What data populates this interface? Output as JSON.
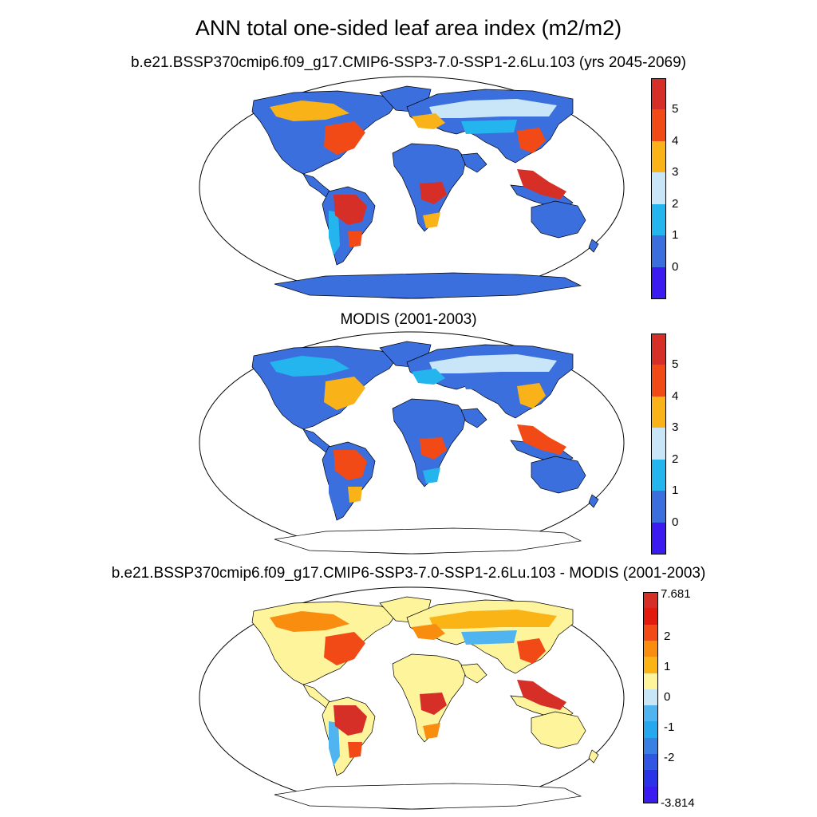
{
  "title": "ANN total one-sided leaf area index (m2/m2)",
  "panels": [
    {
      "subtitle": "b.e21.BSSP370cmip6.f09_g17.CMIP6-SSP3-7.0-SSP1-2.6Lu.103 (yrs 2045-2069)",
      "colorbar": {
        "colors": [
          "#d62f27",
          "#f24a16",
          "#f9b218",
          "#c8e6f8",
          "#25b5ee",
          "#3c6fde",
          "#3b1cf0"
        ],
        "labels": [
          "5",
          "4",
          "3",
          "2",
          "1",
          "0"
        ]
      },
      "regions": {
        "ocean": "#ffffff",
        "land_base": "#3c6fde",
        "tropical_forest": "#d62f27",
        "mid_forest": "#f24a16",
        "moderate": "#f9b218",
        "sparse": "#c8e6f8",
        "low": "#25b5ee",
        "antarctica": "#3c6fde"
      }
    },
    {
      "subtitle": "MODIS (2001-2003)",
      "colorbar": {
        "colors": [
          "#d62f27",
          "#f24a16",
          "#f9b218",
          "#c8e6f8",
          "#25b5ee",
          "#3c6fde",
          "#3b1cf0"
        ],
        "labels": [
          "5",
          "4",
          "3",
          "2",
          "1",
          "0"
        ]
      },
      "regions": {
        "ocean": "#ffffff",
        "land_base": "#3c6fde",
        "tropical_forest": "#f24a16",
        "mid_forest": "#f9b218",
        "moderate": "#25b5ee",
        "sparse": "#c8e6f8",
        "low": "#3c6fde",
        "antarctica": "#ffffff"
      }
    },
    {
      "subtitle": "b.e21.BSSP370cmip6.f09_g17.CMIP6-SSP3-7.0-SSP1-2.6Lu.103 - MODIS (2001-2003)",
      "colorbar": {
        "colors": [
          "#d62f27",
          "#e31a0e",
          "#f24a16",
          "#f98d10",
          "#fbb416",
          "#fef49b",
          "#c8e6f8",
          "#4fb4ef",
          "#25a8ee",
          "#3a7fe3",
          "#3156e1",
          "#2b33e9",
          "#3b1cf0"
        ],
        "labels": [
          "7.681",
          "2",
          "1",
          "0",
          "-1",
          "-2",
          "-3.814"
        ]
      },
      "regions": {
        "ocean": "#ffffff",
        "land_base": "#fef49b",
        "tropical_forest": "#d62f27",
        "mid_forest": "#f24a16",
        "moderate": "#f98d10",
        "sparse": "#fbb416",
        "low": "#4fb4ef",
        "antarctica": "#ffffff"
      }
    }
  ]
}
